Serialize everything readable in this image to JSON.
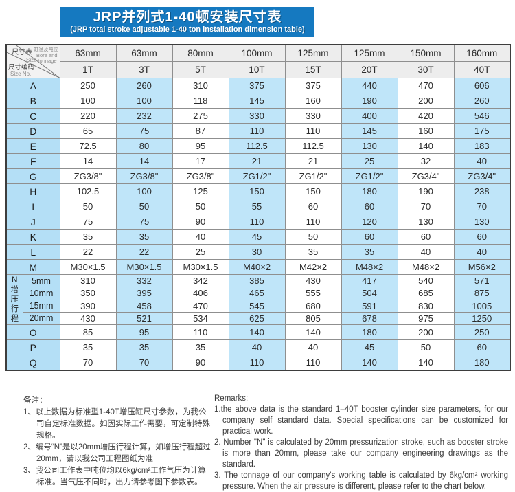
{
  "title": {
    "zh": "JRP并列式1-40顿安装尺寸表",
    "en": "(JRP total stroke adjustable 1-40 ton installation dimension table)"
  },
  "table": {
    "corner": {
      "size_zh": "尺寸表",
      "size_en": "Size",
      "bore_zh": "缸径及吨位",
      "bore_en1": "Bore and",
      "bore_en2": "tonnage",
      "no_zh": "尺寸编码",
      "no_en": "Size No."
    },
    "columns": [
      {
        "bore": "63mm",
        "tonnage": "1T"
      },
      {
        "bore": "63mm",
        "tonnage": "3T"
      },
      {
        "bore": "80mm",
        "tonnage": "5T"
      },
      {
        "bore": "100mm",
        "tonnage": "10T"
      },
      {
        "bore": "125mm",
        "tonnage": "15T"
      },
      {
        "bore": "125mm",
        "tonnage": "20T"
      },
      {
        "bore": "150mm",
        "tonnage": "30T"
      },
      {
        "bore": "160mm",
        "tonnage": "40T"
      }
    ],
    "rows": [
      {
        "label": "A",
        "values": [
          "250",
          "260",
          "310",
          "375",
          "375",
          "440",
          "470",
          "606"
        ]
      },
      {
        "label": "B",
        "values": [
          "100",
          "100",
          "118",
          "145",
          "160",
          "190",
          "200",
          "260"
        ]
      },
      {
        "label": "C",
        "values": [
          "220",
          "232",
          "275",
          "330",
          "330",
          "400",
          "420",
          "546"
        ]
      },
      {
        "label": "D",
        "values": [
          "65",
          "75",
          "87",
          "110",
          "110",
          "145",
          "160",
          "175"
        ]
      },
      {
        "label": "E",
        "values": [
          "72.5",
          "80",
          "95",
          "112.5",
          "112.5",
          "130",
          "140",
          "183"
        ]
      },
      {
        "label": "F",
        "values": [
          "14",
          "14",
          "17",
          "21",
          "21",
          "25",
          "32",
          "40"
        ]
      },
      {
        "label": "G",
        "values": [
          "ZG3/8\"",
          "ZG3/8\"",
          "ZG3/8\"",
          "ZG1/2\"",
          "ZG1/2\"",
          "ZG1/2\"",
          "ZG3/4\"",
          "ZG3/4\""
        ]
      },
      {
        "label": "H",
        "values": [
          "102.5",
          "100",
          "125",
          "150",
          "150",
          "180",
          "190",
          "238"
        ]
      },
      {
        "label": "I",
        "values": [
          "50",
          "50",
          "50",
          "55",
          "60",
          "60",
          "70",
          "70"
        ]
      },
      {
        "label": "J",
        "values": [
          "75",
          "75",
          "90",
          "110",
          "110",
          "120",
          "130",
          "130"
        ]
      },
      {
        "label": "K",
        "values": [
          "35",
          "35",
          "40",
          "45",
          "50",
          "60",
          "60",
          "60"
        ]
      },
      {
        "label": "L",
        "values": [
          "22",
          "22",
          "25",
          "30",
          "35",
          "35",
          "40",
          "40"
        ]
      },
      {
        "label": "M",
        "values": [
          "M30×1.5",
          "M30×1.5",
          "M30×1.5",
          "M40×2",
          "M42×2",
          "M48×2",
          "M48×2",
          "M56×2"
        ]
      }
    ],
    "n_block": {
      "vertical_label": "N增压行程",
      "sub_rows": [
        {
          "label": "5mm",
          "values": [
            "310",
            "332",
            "342",
            "385",
            "430",
            "417",
            "540",
            "571"
          ]
        },
        {
          "label": "10mm",
          "values": [
            "350",
            "395",
            "406",
            "465",
            "555",
            "504",
            "685",
            "875"
          ]
        },
        {
          "label": "15mm",
          "values": [
            "390",
            "458",
            "470",
            "545",
            "680",
            "591",
            "830",
            "1005"
          ]
        },
        {
          "label": "20mm",
          "values": [
            "430",
            "521",
            "534",
            "625",
            "805",
            "678",
            "975",
            "1250"
          ]
        }
      ]
    },
    "rows2": [
      {
        "label": "O",
        "values": [
          "85",
          "95",
          "110",
          "140",
          "140",
          "180",
          "200",
          "250"
        ]
      },
      {
        "label": "P",
        "values": [
          "35",
          "35",
          "35",
          "40",
          "40",
          "45",
          "50",
          "60"
        ]
      },
      {
        "label": "Q",
        "values": [
          "70",
          "70",
          "90",
          "110",
          "110",
          "140",
          "140",
          "180"
        ]
      }
    ]
  },
  "notes_zh": {
    "heading": "备注：",
    "items": [
      "1、以上数据为标准型1-40T增压缸尺寸参数，为我公司自定标准数据。如因实际工作需要，可定制特殊规格。",
      "2、编号“N”是以20mm增压行程计算，如增压行程超过20mm，请以我公司工程图纸为准",
      "3、我公司工作表中吨位均以6kg/cm²工作气压为计算标准。当气压不同时，出力请参考图下参数表。"
    ]
  },
  "notes_en": {
    "heading": "Remarks:",
    "items": [
      "1.the above data is the standard 1–40T booster cylinder size parameters, for our company self standard data. Special specifications can be customized for practical work.",
      "2. Number \"N\" is calculated by 20mm pressurization stroke, such as booster stroke is more than 20mm, please take our company engineering drawings as the standard.",
      "3. The tonnage of our company's working table is calculated by 6kg/cm² working pressure. When the air pressure is different, please refer to the chart below."
    ]
  },
  "colors": {
    "banner_blue": "#1579c0",
    "header_gray": "#ededed",
    "label_blue": "#b4dff6",
    "alt_column_blue": "#bfe5f9"
  }
}
